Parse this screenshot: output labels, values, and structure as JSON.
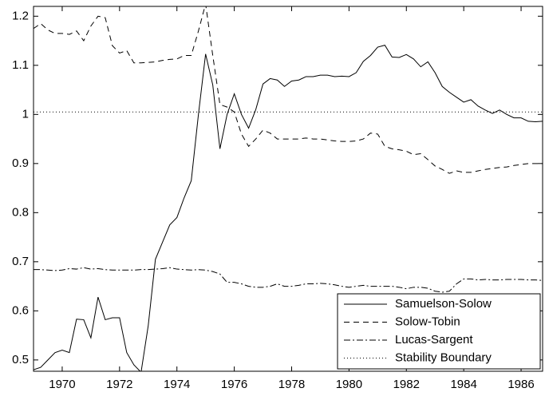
{
  "chart_data": {
    "type": "line",
    "x": [
      1969,
      1969.25,
      1969.5,
      1969.75,
      1970,
      1970.25,
      1970.5,
      1970.75,
      1971,
      1971.25,
      1971.5,
      1971.75,
      1972,
      1972.25,
      1972.5,
      1972.75,
      1973,
      1973.25,
      1973.5,
      1973.75,
      1974,
      1974.25,
      1974.5,
      1974.75,
      1975,
      1975.25,
      1975.5,
      1975.75,
      1976,
      1976.25,
      1976.5,
      1976.75,
      1977,
      1977.25,
      1977.5,
      1977.75,
      1978,
      1978.25,
      1978.5,
      1978.75,
      1979,
      1979.25,
      1979.5,
      1979.75,
      1980,
      1980.25,
      1980.5,
      1980.75,
      1981,
      1981.25,
      1981.5,
      1981.75,
      1982,
      1982.25,
      1982.5,
      1982.75,
      1983,
      1983.25,
      1983.5,
      1983.75,
      1984,
      1984.25,
      1984.5,
      1984.75,
      1985,
      1985.25,
      1985.5,
      1985.75,
      1986,
      1986.25,
      1986.5,
      1986.75
    ],
    "series": [
      {
        "name": "Samuelson-Solow",
        "color": "#000000",
        "dash": "none",
        "values": [
          0.48,
          0.485,
          0.5,
          0.515,
          0.52,
          0.515,
          0.583,
          0.582,
          0.545,
          0.628,
          0.582,
          0.586,
          0.586,
          0.515,
          0.49,
          0.475,
          0.57,
          0.705,
          0.74,
          0.775,
          0.79,
          0.83,
          0.865,
          1.0,
          1.123,
          1.06,
          0.93,
          1.0,
          1.042,
          1.0,
          0.972,
          1.01,
          1.062,
          1.073,
          1.07,
          1.057,
          1.068,
          1.07,
          1.077,
          1.077,
          1.08,
          1.08,
          1.077,
          1.078,
          1.077,
          1.085,
          1.108,
          1.12,
          1.137,
          1.141,
          1.117,
          1.116,
          1.122,
          1.113,
          1.097,
          1.107,
          1.085,
          1.057,
          1.045,
          1.035,
          1.025,
          1.03,
          1.017,
          1.009,
          1.002,
          1.009,
          1.0,
          0.993,
          0.993,
          0.986,
          0.985,
          0.986
        ]
      },
      {
        "name": "Solow-Tobin",
        "color": "#000000",
        "dash": "7 5",
        "values": [
          1.175,
          1.185,
          1.172,
          1.165,
          1.165,
          1.163,
          1.17,
          1.15,
          1.18,
          1.2,
          1.197,
          1.14,
          1.125,
          1.13,
          1.105,
          1.105,
          1.106,
          1.107,
          1.11,
          1.112,
          1.113,
          1.12,
          1.12,
          1.17,
          1.225,
          1.12,
          1.02,
          1.015,
          1.005,
          0.96,
          0.935,
          0.95,
          0.968,
          0.962,
          0.95,
          0.95,
          0.95,
          0.95,
          0.952,
          0.95,
          0.95,
          0.948,
          0.946,
          0.945,
          0.945,
          0.946,
          0.95,
          0.962,
          0.96,
          0.935,
          0.93,
          0.928,
          0.925,
          0.918,
          0.92,
          0.908,
          0.895,
          0.888,
          0.88,
          0.885,
          0.882,
          0.882,
          0.885,
          0.888,
          0.89,
          0.892,
          0.893,
          0.896,
          0.898,
          0.9,
          0.9,
          0.9
        ]
      },
      {
        "name": "Lucas-Sargent",
        "color": "#000000",
        "dash": "8 3 2 3",
        "values": [
          0.684,
          0.684,
          0.683,
          0.682,
          0.683,
          0.686,
          0.685,
          0.688,
          0.685,
          0.686,
          0.684,
          0.683,
          0.683,
          0.683,
          0.683,
          0.684,
          0.684,
          0.685,
          0.686,
          0.688,
          0.685,
          0.684,
          0.683,
          0.684,
          0.683,
          0.68,
          0.675,
          0.658,
          0.658,
          0.655,
          0.65,
          0.648,
          0.648,
          0.65,
          0.655,
          0.65,
          0.65,
          0.652,
          0.655,
          0.655,
          0.656,
          0.655,
          0.653,
          0.65,
          0.648,
          0.65,
          0.652,
          0.65,
          0.65,
          0.65,
          0.65,
          0.648,
          0.645,
          0.648,
          0.648,
          0.646,
          0.64,
          0.638,
          0.64,
          0.655,
          0.665,
          0.665,
          0.663,
          0.664,
          0.663,
          0.663,
          0.664,
          0.664,
          0.664,
          0.663,
          0.663,
          0.662
        ]
      },
      {
        "name": "Stability Boundary",
        "color": "#000000",
        "dash": "1 3",
        "x": [
          1969,
          1986.75
        ],
        "values": [
          1.005,
          1.005
        ]
      }
    ],
    "xlim": [
      1969,
      1986.75
    ],
    "ylim": [
      0.477,
      1.22
    ],
    "xticks": [
      1970,
      1972,
      1974,
      1976,
      1978,
      1980,
      1982,
      1984,
      1986
    ],
    "yticks": [
      0.5,
      0.6,
      0.7,
      0.8,
      0.9,
      1,
      1.1,
      1.2
    ],
    "legend": "lower right"
  }
}
